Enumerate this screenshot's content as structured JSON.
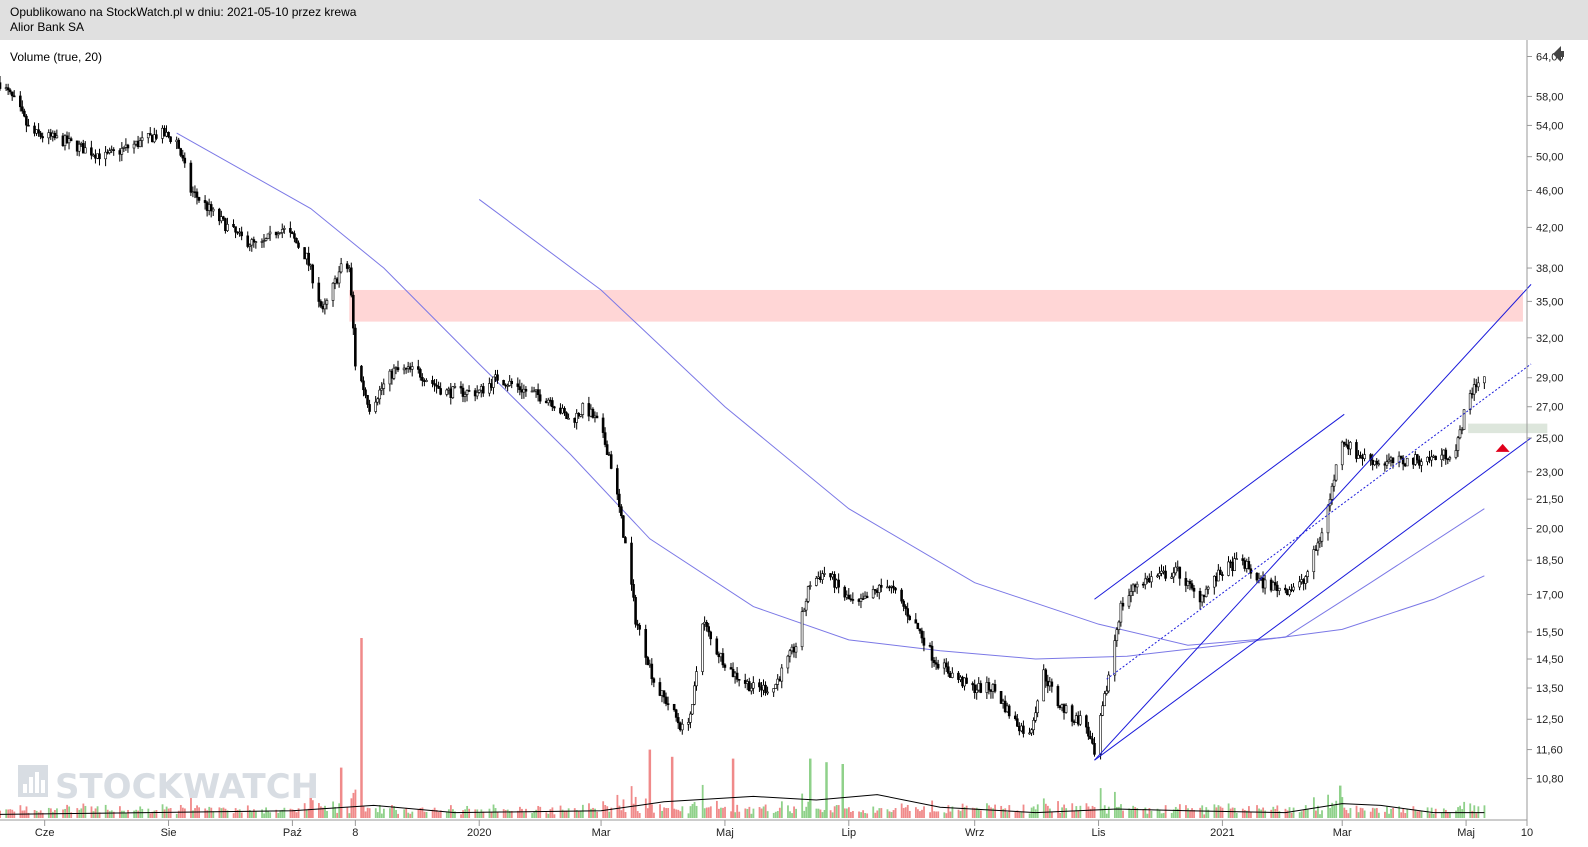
{
  "header": {
    "line1": "Opublikowano na StockWatch.pl w dniu: 2021-05-10 przez krewa",
    "line2": "Alior Bank SA"
  },
  "indicator_label": "Volume (true, 20)",
  "watermark": "STOCKWATCH",
  "colors": {
    "candle": "#000000",
    "ma": "#7b78e6",
    "trendline": "#1a1adb",
    "resistance_zone": "#ffd6d6",
    "support_zone": "#dde6dc",
    "arrow": "#e0001b",
    "vol_up": "#8fd18a",
    "vol_down": "#f08a8a",
    "vol_avg": "#000000"
  },
  "chart_data": {
    "type": "candlestick",
    "x_range": [
      "2019-05-10",
      "2021-05-31"
    ],
    "y_range": [
      9.8,
      66
    ],
    "y_scale": "log",
    "y_ticks": [
      "64,00",
      "58,00",
      "54,00",
      "50,00",
      "46,00",
      "42,00",
      "38,00",
      "35,00",
      "32,00",
      "29,00",
      "27,00",
      "25,00",
      "23,00",
      "21,50",
      "20,00",
      "18,50",
      "17,00",
      "15,50",
      "14,50",
      "13,50",
      "12,50",
      "11,60",
      "10,80"
    ],
    "x_ticks": [
      {
        "date": "2019-06-01",
        "label": "Cze"
      },
      {
        "date": "2019-08-01",
        "label": "Sie"
      },
      {
        "date": "2019-10-01",
        "label": "Paź"
      },
      {
        "date": "2019-11-01",
        "label": "8"
      },
      {
        "date": "2020-01-01",
        "label": "2020"
      },
      {
        "date": "2020-03-01",
        "label": "Mar"
      },
      {
        "date": "2020-05-01",
        "label": "Maj"
      },
      {
        "date": "2020-07-01",
        "label": "Lip"
      },
      {
        "date": "2020-09-01",
        "label": "Wrz"
      },
      {
        "date": "2020-11-01",
        "label": "Lis"
      },
      {
        "date": "2021-01-01",
        "label": "2021"
      },
      {
        "date": "2021-03-01",
        "label": "Mar"
      },
      {
        "date": "2021-05-01",
        "label": "Maj"
      },
      {
        "date": "2021-05-31",
        "label": "10"
      }
    ],
    "price_path": [
      [
        "2019-05-10",
        60
      ],
      [
        "2019-05-18",
        57
      ],
      [
        "2019-05-25",
        53
      ],
      [
        "2019-06-10",
        52
      ],
      [
        "2019-06-20",
        51
      ],
      [
        "2019-07-01",
        50
      ],
      [
        "2019-07-20",
        52
      ],
      [
        "2019-07-28",
        53
      ],
      [
        "2019-08-05",
        52
      ],
      [
        "2019-08-12",
        46
      ],
      [
        "2019-08-25",
        43
      ],
      [
        "2019-09-05",
        41
      ],
      [
        "2019-09-15",
        40
      ],
      [
        "2019-09-25",
        42
      ],
      [
        "2019-10-01",
        41
      ],
      [
        "2019-10-08",
        39
      ],
      [
        "2019-10-16",
        34
      ],
      [
        "2019-10-25",
        38
      ],
      [
        "2019-10-29",
        38
      ],
      [
        "2019-11-01",
        30
      ],
      [
        "2019-11-08",
        27
      ],
      [
        "2019-11-20",
        29.5
      ],
      [
        "2019-12-01",
        29.5
      ],
      [
        "2019-12-15",
        28
      ],
      [
        "2020-01-01",
        28
      ],
      [
        "2020-01-10",
        29
      ],
      [
        "2020-01-25",
        28
      ],
      [
        "2020-02-05",
        27.5
      ],
      [
        "2020-02-15",
        26
      ],
      [
        "2020-02-22",
        27
      ],
      [
        "2020-02-28",
        26
      ],
      [
        "2020-03-05",
        24
      ],
      [
        "2020-03-10",
        21
      ],
      [
        "2020-03-15",
        18
      ],
      [
        "2020-03-18",
        16
      ],
      [
        "2020-03-22",
        15
      ],
      [
        "2020-03-28",
        13.5
      ],
      [
        "2020-04-03",
        13
      ],
      [
        "2020-04-10",
        12.2
      ],
      [
        "2020-04-15",
        12.8
      ],
      [
        "2020-04-20",
        16
      ],
      [
        "2020-04-25",
        15
      ],
      [
        "2020-05-05",
        14
      ],
      [
        "2020-05-15",
        13.5
      ],
      [
        "2020-05-25",
        13.5
      ],
      [
        "2020-06-05",
        15
      ],
      [
        "2020-06-12",
        17.5
      ],
      [
        "2020-06-20",
        18
      ],
      [
        "2020-06-28",
        17
      ],
      [
        "2020-07-05",
        16.5
      ],
      [
        "2020-07-20",
        17.5
      ],
      [
        "2020-07-28",
        16.5
      ],
      [
        "2020-08-05",
        15.5
      ],
      [
        "2020-08-12",
        14.5
      ],
      [
        "2020-08-20",
        14
      ],
      [
        "2020-08-30",
        13.5
      ],
      [
        "2020-09-10",
        13.5
      ],
      [
        "2020-09-20",
        12.5
      ],
      [
        "2020-09-28",
        12
      ],
      [
        "2020-10-05",
        14
      ],
      [
        "2020-10-12",
        13
      ],
      [
        "2020-10-20",
        12.5
      ],
      [
        "2020-10-25",
        12.5
      ],
      [
        "2020-10-30",
        11.4
      ],
      [
        "2020-11-05",
        13.5
      ],
      [
        "2020-11-12",
        16.5
      ],
      [
        "2020-11-20",
        17.5
      ],
      [
        "2020-12-01",
        17.8
      ],
      [
        "2020-12-10",
        18
      ],
      [
        "2020-12-20",
        16.8
      ],
      [
        "2021-01-01",
        18
      ],
      [
        "2021-01-10",
        18.5
      ],
      [
        "2021-01-20",
        17.5
      ],
      [
        "2021-02-01",
        17.2
      ],
      [
        "2021-02-10",
        17.5
      ],
      [
        "2021-02-18",
        19.5
      ],
      [
        "2021-02-23",
        21.5
      ],
      [
        "2021-03-01",
        25
      ],
      [
        "2021-03-08",
        24
      ],
      [
        "2021-03-20",
        23.5
      ],
      [
        "2021-04-01",
        23.6
      ],
      [
        "2021-04-15",
        23.8
      ],
      [
        "2021-04-26",
        24.2
      ],
      [
        "2021-05-01",
        27
      ],
      [
        "2021-05-05",
        28.5
      ],
      [
        "2021-05-10",
        29
      ]
    ],
    "moving_averages": [
      {
        "points": [
          [
            "2019-08-05",
            53
          ],
          [
            "2019-10-10",
            44
          ],
          [
            "2019-11-15",
            38
          ],
          [
            "2020-01-01",
            30
          ],
          [
            "2020-02-15",
            24
          ],
          [
            "2020-03-25",
            19.5
          ],
          [
            "2020-05-15",
            16.5
          ],
          [
            "2020-07-01",
            15.2
          ],
          [
            "2020-08-15",
            14.8
          ],
          [
            "2020-10-01",
            14.5
          ],
          [
            "2020-11-15",
            14.6
          ],
          [
            "2021-01-01",
            15
          ],
          [
            "2021-03-01",
            15.6
          ],
          [
            "2021-04-15",
            16.8
          ],
          [
            "2021-05-10",
            17.8
          ]
        ]
      },
      {
        "points": [
          [
            "2020-01-01",
            45
          ],
          [
            "2020-03-01",
            36
          ],
          [
            "2020-05-01",
            27
          ],
          [
            "2020-07-01",
            21
          ],
          [
            "2020-09-01",
            17.5
          ],
          [
            "2020-11-01",
            15.8
          ],
          [
            "2020-12-15",
            15
          ],
          [
            "2021-02-01",
            15.3
          ],
          [
            "2021-03-15",
            17.5
          ],
          [
            "2021-05-10",
            21
          ]
        ]
      }
    ],
    "trendlines": [
      {
        "style": "solid",
        "points": [
          [
            "2020-10-30",
            11.3
          ],
          [
            "2021-06-02",
            36.5
          ]
        ]
      },
      {
        "style": "solid",
        "points": [
          [
            "2020-10-30",
            16.8
          ],
          [
            "2021-03-02",
            26.5
          ]
        ]
      },
      {
        "style": "solid",
        "points": [
          [
            "2020-10-30",
            11.3
          ],
          [
            "2021-06-02",
            25
          ]
        ]
      },
      {
        "style": "dotted",
        "points": [
          [
            "2020-11-05",
            13.8
          ],
          [
            "2021-06-02",
            30
          ]
        ]
      }
    ],
    "zones": [
      {
        "from": "2019-10-29",
        "to": "2021-05-29",
        "low": 33.3,
        "high": 36,
        "kind": "resistance"
      },
      {
        "from": "2021-05-02",
        "to": "2021-06-10",
        "low": 25.3,
        "high": 25.9,
        "kind": "support"
      }
    ],
    "marker": {
      "date": "2021-05-19",
      "price": 24.4,
      "shape": "triangle-up"
    },
    "volume": {
      "max": 100,
      "spikes": [
        {
          "date": "2019-11-04",
          "value": 100,
          "dir": "down"
        },
        {
          "date": "2019-10-25",
          "value": 28,
          "dir": "down"
        },
        {
          "date": "2019-10-10",
          "value": 21,
          "dir": "down"
        },
        {
          "date": "2020-03-25",
          "value": 38,
          "dir": "down"
        },
        {
          "date": "2020-04-05",
          "value": 34,
          "dir": "down"
        },
        {
          "date": "2020-05-05",
          "value": 33,
          "dir": "down"
        },
        {
          "date": "2020-06-12",
          "value": 33,
          "dir": "up"
        },
        {
          "date": "2020-06-20",
          "value": 31,
          "dir": "up"
        },
        {
          "date": "2020-06-28",
          "value": 30,
          "dir": "up"
        },
        {
          "date": "2021-02-28",
          "value": 18,
          "dir": "up"
        }
      ],
      "avg": [
        [
          "2019-05-10",
          2
        ],
        [
          "2019-10-01",
          4
        ],
        [
          "2019-11-10",
          7
        ],
        [
          "2019-12-20",
          3
        ],
        [
          "2020-03-01",
          4
        ],
        [
          "2020-04-01",
          9
        ],
        [
          "2020-05-15",
          12
        ],
        [
          "2020-06-15",
          10
        ],
        [
          "2020-07-15",
          13
        ],
        [
          "2020-08-15",
          6
        ],
        [
          "2020-10-01",
          3
        ],
        [
          "2020-11-10",
          5
        ],
        [
          "2020-12-15",
          4
        ],
        [
          "2021-02-01",
          3
        ],
        [
          "2021-03-01",
          8
        ],
        [
          "2021-03-20",
          7
        ],
        [
          "2021-04-15",
          3
        ],
        [
          "2021-05-10",
          3
        ]
      ]
    }
  }
}
